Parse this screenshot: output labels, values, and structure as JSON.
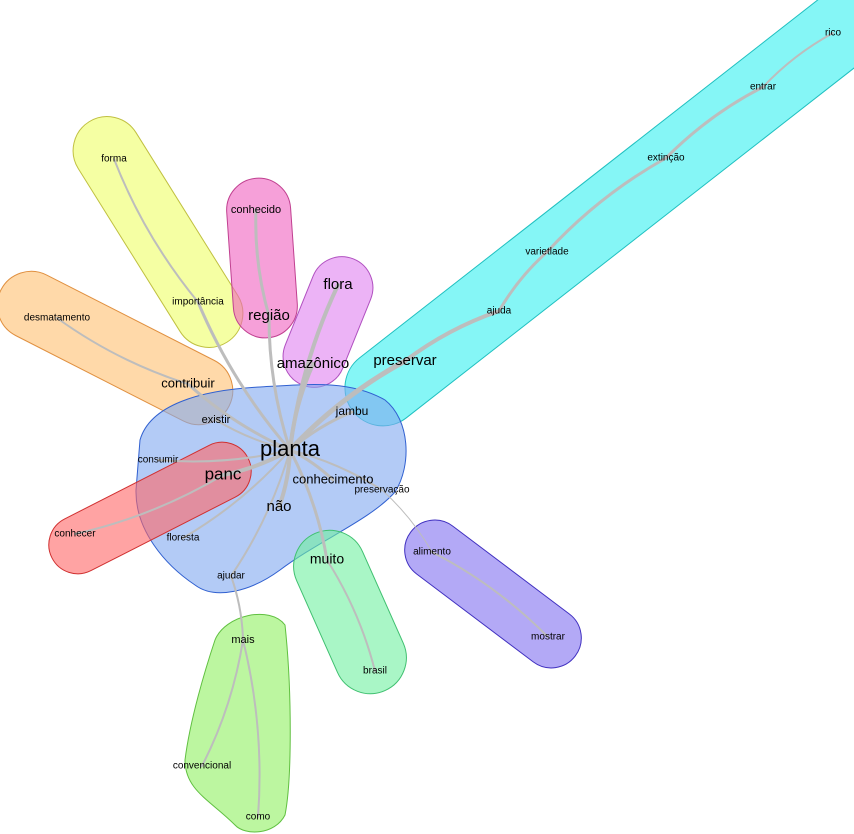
{
  "nodes": [
    {
      "label": "planta"
    },
    {
      "label": "panc"
    },
    {
      "label": "não"
    },
    {
      "label": "conhecimento"
    },
    {
      "label": "preservação"
    },
    {
      "label": "jambu"
    },
    {
      "label": "existir"
    },
    {
      "label": "consumir"
    },
    {
      "label": "floresta"
    },
    {
      "label": "ajudar"
    },
    {
      "label": "muito"
    },
    {
      "label": "brasil"
    },
    {
      "label": "mais"
    },
    {
      "label": "convencional"
    },
    {
      "label": "como"
    },
    {
      "label": "alimento"
    },
    {
      "label": "mostrar"
    },
    {
      "label": "conhecer"
    },
    {
      "label": "contribuir"
    },
    {
      "label": "desmatamento"
    },
    {
      "label": "importância"
    },
    {
      "label": "forma"
    },
    {
      "label": "região"
    },
    {
      "label": "conhecido"
    },
    {
      "label": "flora"
    },
    {
      "label": "amazônico"
    },
    {
      "label": "preservar"
    },
    {
      "label": "ajuda"
    },
    {
      "label": "varietlade"
    },
    {
      "label": "extinção"
    },
    {
      "label": "entrar"
    },
    {
      "label": "rico"
    }
  ]
}
